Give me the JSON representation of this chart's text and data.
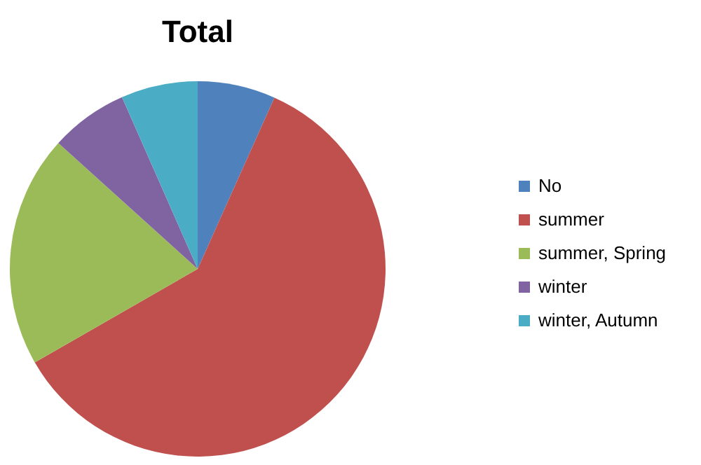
{
  "chart_data": {
    "type": "pie",
    "title": "Total",
    "categories": [
      "No",
      "summer",
      "summer, Spring",
      "winter",
      "winter, Autumn"
    ],
    "values": [
      6.7,
      60,
      20,
      6.7,
      6.6
    ],
    "colors": [
      "#4f81bd",
      "#c0504d",
      "#9bbb59",
      "#8064a2",
      "#4bacc6"
    ],
    "legend": "right"
  }
}
